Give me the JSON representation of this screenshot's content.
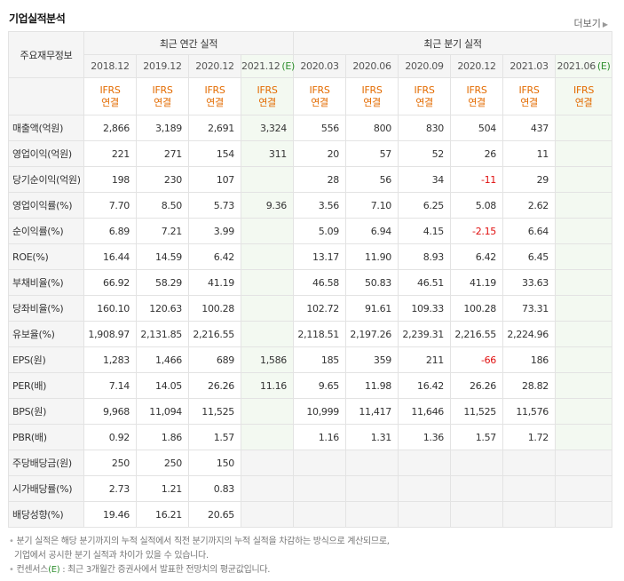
{
  "header": {
    "title": "기업실적분석",
    "more_label": "더보기"
  },
  "table": {
    "corner_label": "주요재무정보",
    "group_annual": "최근 연간 실적",
    "group_quarter": "최근 분기 실적",
    "annual_periods": [
      "2018.12",
      "2019.12",
      "2020.12",
      "2021.12"
    ],
    "annual_est_mark": "(E)",
    "quarter_periods": [
      "2020.03",
      "2020.06",
      "2020.09",
      "2020.12",
      "2021.03",
      "2021.06"
    ],
    "quarter_est_mark": "(E)",
    "standard_line1": "IFRS",
    "standard_line2": "연결",
    "rows": [
      {
        "label": "매출액(억원)",
        "values": [
          "2,866",
          "3,189",
          "2,691",
          "3,324",
          "556",
          "800",
          "830",
          "504",
          "437",
          ""
        ]
      },
      {
        "label": "영업이익(억원)",
        "values": [
          "221",
          "271",
          "154",
          "311",
          "20",
          "57",
          "52",
          "26",
          "11",
          ""
        ]
      },
      {
        "label": "당기순이익(억원)",
        "values": [
          "198",
          "230",
          "107",
          "",
          "28",
          "56",
          "34",
          "-11",
          "29",
          ""
        ]
      },
      {
        "label": "영업이익률(%)",
        "values": [
          "7.70",
          "8.50",
          "5.73",
          "9.36",
          "3.56",
          "7.10",
          "6.25",
          "5.08",
          "2.62",
          ""
        ]
      },
      {
        "label": "순이익률(%)",
        "values": [
          "6.89",
          "7.21",
          "3.99",
          "",
          "5.09",
          "6.94",
          "4.15",
          "-2.15",
          "6.64",
          ""
        ]
      },
      {
        "label": "ROE(%)",
        "values": [
          "16.44",
          "14.59",
          "6.42",
          "",
          "13.17",
          "11.90",
          "8.93",
          "6.42",
          "6.45",
          ""
        ]
      },
      {
        "label": "부채비율(%)",
        "values": [
          "66.92",
          "58.29",
          "41.19",
          "",
          "46.58",
          "50.83",
          "46.51",
          "41.19",
          "33.63",
          ""
        ]
      },
      {
        "label": "당좌비율(%)",
        "values": [
          "160.10",
          "120.63",
          "100.28",
          "",
          "102.72",
          "91.61",
          "109.33",
          "100.28",
          "73.31",
          ""
        ]
      },
      {
        "label": "유보율(%)",
        "values": [
          "1,908.97",
          "2,131.85",
          "2,216.55",
          "",
          "2,118.51",
          "2,197.26",
          "2,239.31",
          "2,216.55",
          "2,224.96",
          ""
        ]
      },
      {
        "label": "EPS(원)",
        "values": [
          "1,283",
          "1,466",
          "689",
          "1,586",
          "185",
          "359",
          "211",
          "-66",
          "186",
          ""
        ]
      },
      {
        "label": "PER(배)",
        "values": [
          "7.14",
          "14.05",
          "26.26",
          "11.16",
          "9.65",
          "11.98",
          "16.42",
          "26.26",
          "28.82",
          ""
        ]
      },
      {
        "label": "BPS(원)",
        "values": [
          "9,968",
          "11,094",
          "11,525",
          "",
          "10,999",
          "11,417",
          "11,646",
          "11,525",
          "11,576",
          ""
        ]
      },
      {
        "label": "PBR(배)",
        "values": [
          "0.92",
          "1.86",
          "1.57",
          "",
          "1.16",
          "1.31",
          "1.36",
          "1.57",
          "1.72",
          ""
        ]
      },
      {
        "label": "주당배당금(원)",
        "values": [
          "250",
          "250",
          "150",
          "",
          "",
          "",
          "",
          "",
          "",
          ""
        ]
      },
      {
        "label": "시가배당률(%)",
        "values": [
          "2.73",
          "1.21",
          "0.83",
          "",
          "",
          "",
          "",
          "",
          "",
          ""
        ]
      },
      {
        "label": "배당성향(%)",
        "values": [
          "19.46",
          "16.21",
          "20.65",
          "",
          "",
          "",
          "",
          "",
          "",
          ""
        ]
      }
    ]
  },
  "notes": {
    "line1": "분기 실적은 해당 분기까지의 누적 실적에서 직전 분기까지의 누적 실적을 차감하는 방식으로 계산되므로,",
    "line1b": "기업에서 공시한 분기 실적과 차이가 있을 수 있습니다.",
    "line2_prefix": "컨센서스",
    "line2_mark": "(E)",
    "line2_rest": " : 최근 3개월간 증권사에서 발표한 전망치의 평균값입니다."
  },
  "colors": {
    "ifrs": "#e36b00",
    "estimate_bg": "#f3f9f1",
    "negative": "#e01010",
    "estimate_mark": "#2f8f2f"
  }
}
